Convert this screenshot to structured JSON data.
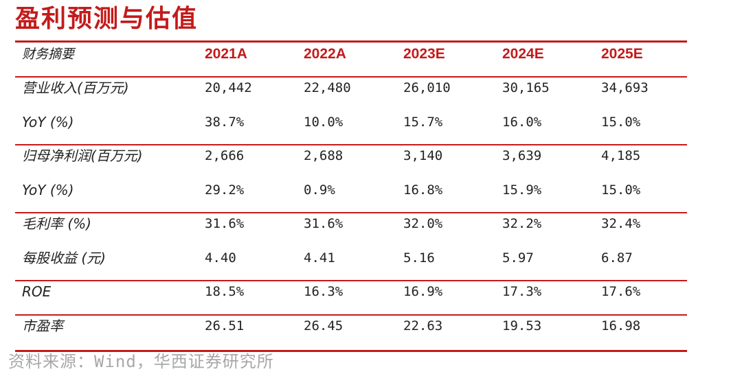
{
  "title": "盈利预测与估值",
  "table": {
    "header": {
      "label": "财务摘要",
      "years": [
        "2021A",
        "2022A",
        "2023E",
        "2024E",
        "2025E"
      ]
    },
    "rows": [
      {
        "label": "营业收入(百万元)",
        "values": [
          "20,442",
          "22,480",
          "26,010",
          "30,165",
          "34,693"
        ]
      },
      {
        "label": "YoY (%)",
        "values": [
          "38.7%",
          "10.0%",
          "15.7%",
          "16.0%",
          "15.0%"
        ]
      },
      {
        "label": "归母净利润(百万元)",
        "values": [
          "2,666",
          "2,688",
          "3,140",
          "3,639",
          "4,185"
        ]
      },
      {
        "label": "YoY (%)",
        "values": [
          "29.2%",
          "0.9%",
          "16.8%",
          "15.9%",
          "15.0%"
        ]
      },
      {
        "label": "毛利率 (%)",
        "values": [
          "31.6%",
          "31.6%",
          "32.0%",
          "32.2%",
          "32.4%"
        ]
      },
      {
        "label": "每股收益 (元)",
        "values": [
          "4.40",
          "4.41",
          "5.16",
          "5.97",
          "6.87"
        ]
      },
      {
        "label": "ROE",
        "values": [
          "18.5%",
          "16.3%",
          "16.9%",
          "17.3%",
          "17.6%"
        ]
      },
      {
        "label": "市盈率",
        "values": [
          "26.51",
          "26.45",
          "22.63",
          "19.53",
          "16.98"
        ]
      }
    ]
  },
  "source": "资料来源：Wind，华西证券研究所",
  "colors": {
    "accent": "#c41a1a",
    "text": "#222222",
    "source": "#a8a8a8"
  }
}
